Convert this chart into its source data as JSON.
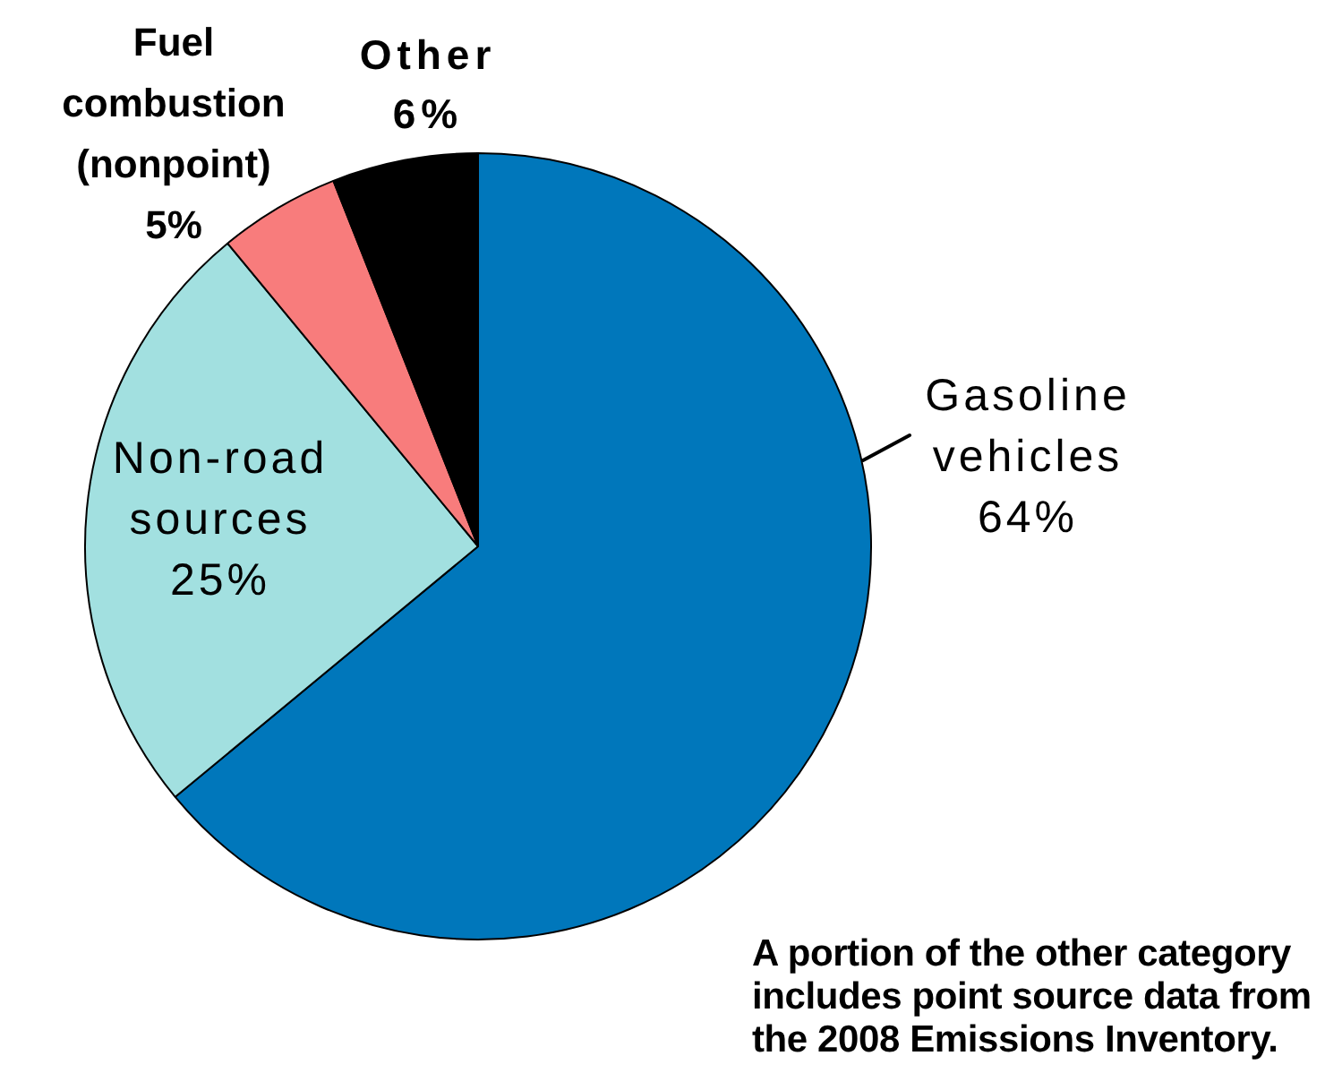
{
  "chart_data": {
    "type": "pie",
    "categories": [
      "Gasoline vehicles",
      "Non-road sources",
      "Fuel combustion (nonpoint)",
      "Other"
    ],
    "values": [
      64,
      25,
      5,
      6
    ],
    "colors": [
      "#0077bb",
      "#a2e0e0",
      "#f87c7c",
      "#000000"
    ],
    "value_labels": [
      "64%",
      "25%",
      "5%",
      "6%"
    ],
    "legend": false,
    "annotations": [
      "A portion of the other category includes point source data from the 2008 Emissions Inventory."
    ]
  }
}
